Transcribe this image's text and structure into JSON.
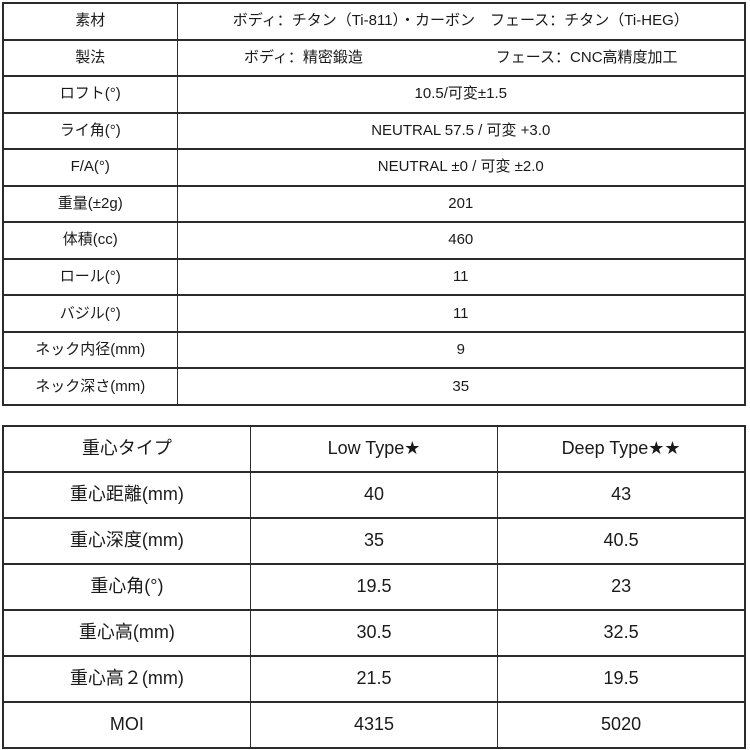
{
  "spec_table": {
    "rows": [
      {
        "label": "素材",
        "value": "ボディ：チタン（Ti-811）・カーボン　フェース：チタン（Ti-HEG）"
      },
      {
        "label": "製法",
        "value_body": "ボディ：精密鍛造",
        "value_face": "フェース：CNC高精度加工"
      },
      {
        "label": "ロフト(°)",
        "value": "10.5/可変±1.5"
      },
      {
        "label": "ライ角(°)",
        "value": "NEUTRAL 57.5 / 可変 +3.0"
      },
      {
        "label": "F/A(°)",
        "value": "NEUTRAL ±0 / 可変 ±2.0"
      },
      {
        "label": "重量(±2g)",
        "value": "201"
      },
      {
        "label": "体積(cc)",
        "value": "460"
      },
      {
        "label": "ロール(°)",
        "value": "11"
      },
      {
        "label": "バジル(°)",
        "value": "11"
      },
      {
        "label": "ネック内径(mm)",
        "value": "9"
      },
      {
        "label": "ネック深さ(mm)",
        "value": "35"
      }
    ]
  },
  "cg_table": {
    "headers": [
      "重心タイプ",
      "Low Type★",
      "Deep Type★★"
    ],
    "rows": [
      {
        "label": "重心距離(mm)",
        "low": "40",
        "deep": "43"
      },
      {
        "label": "重心深度(mm)",
        "low": "35",
        "deep": "40.5"
      },
      {
        "label": "重心角(°)",
        "low": "19.5",
        "deep": "23"
      },
      {
        "label": "重心高(mm)",
        "low": "30.5",
        "deep": "32.5"
      },
      {
        "label": "重心高２(mm)",
        "low": "21.5",
        "deep": "19.5"
      },
      {
        "label": "MOI",
        "low": "4315",
        "deep": "5020"
      }
    ]
  },
  "colors": {
    "border": "#2b2b2b",
    "text": "#1a1a1a",
    "background": "#ffffff"
  }
}
